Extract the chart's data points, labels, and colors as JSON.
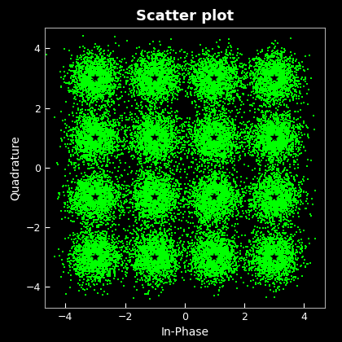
{
  "title": "Scatter plot",
  "xlabel": "In-Phase",
  "ylabel": "Quadrature",
  "background_color": "#000000",
  "text_color": "#ffffff",
  "scatter_color": "#00ff00",
  "center_color": "#000000",
  "constellation_points": [
    -3,
    -1,
    1,
    3
  ],
  "noise_std": 0.42,
  "n_points_per_symbol": 1500,
  "xlim": [
    -4.7,
    4.7
  ],
  "ylim": [
    -4.7,
    4.7
  ],
  "xticks": [
    -4,
    -2,
    0,
    2,
    4
  ],
  "yticks": [
    -4,
    -2,
    0,
    2,
    4
  ],
  "marker_size": 1.5,
  "star_size": 7,
  "seed": 42,
  "title_fontsize": 13,
  "label_fontsize": 10,
  "tick_fontsize": 9
}
